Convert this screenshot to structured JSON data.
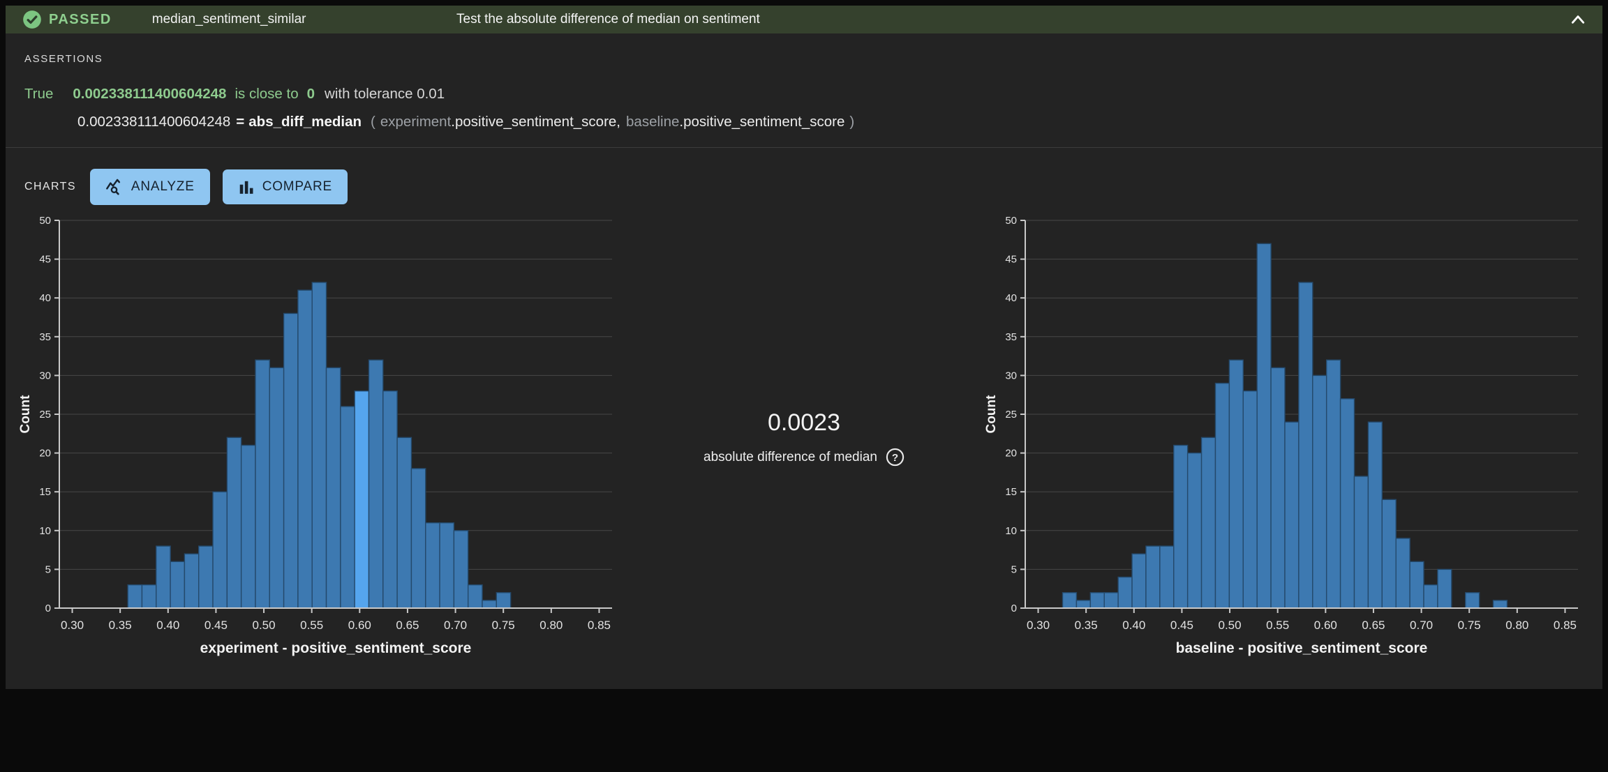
{
  "header": {
    "status": "PASSED",
    "test_name": "median_sentiment_similar",
    "description": "Test the absolute difference of median on sentiment"
  },
  "assertions": {
    "section_label": "ASSERTIONS",
    "result": "True",
    "value": "0.002338111400604248",
    "comparison": "is close to",
    "target": "0",
    "tolerance_text": "with tolerance 0.01",
    "formula": {
      "lhs": "0.002338111400604248",
      "equals": "=",
      "fn": "abs_diff_median",
      "open_paren": "(",
      "arg1_prefix": "experiment",
      "arg1_rest": ".positive_sentiment_score,",
      "arg2_prefix": "baseline",
      "arg2_rest": ".positive_sentiment_score",
      "close_paren": ")"
    }
  },
  "charts_section": {
    "label": "CHARTS",
    "analyze_label": "ANALYZE",
    "compare_label": "COMPARE"
  },
  "metric": {
    "value": "0.0023",
    "label": "absolute difference of median"
  },
  "colors": {
    "page_bg": "#0a0a0a",
    "panel_bg": "#232323",
    "header_bg": "#35412d",
    "status_green": "#8fd08f",
    "check_fill": "#7cc581",
    "check_mark": "#2c3e2c",
    "assert_green": "#8ecb8e",
    "dim_text": "#9da1a6",
    "tol_text": "#d6d6d6",
    "divider": "#3b3b3b",
    "button_bg": "#8fc6f1",
    "button_fg": "#16222e"
  },
  "chart_style": {
    "bar_color": "#3d79b1",
    "highlight_color": "#55a5ee",
    "bar_border": "#24496b",
    "grid_color": "#474747",
    "axis_color": "#c9c9c9",
    "tick_color": "#e2e2e2",
    "label_color": "#f2f2f2",
    "xlim": [
      0.2865,
      0.8635
    ],
    "ylim": [
      0,
      50
    ],
    "xticks": [
      0.3,
      0.35,
      0.4,
      0.45,
      0.5,
      0.55,
      0.6,
      0.65,
      0.7,
      0.75,
      0.8,
      0.85
    ],
    "yticks": [
      0,
      5,
      10,
      15,
      20,
      25,
      30,
      35,
      40,
      45,
      50
    ]
  },
  "chart_data": [
    {
      "type": "bar",
      "name": "experiment-histogram",
      "xlabel": "experiment - positive_sentiment_score",
      "ylabel": "Count",
      "bin_start": 0.358,
      "bin_width": 0.0148,
      "counts": [
        3,
        3,
        8,
        6,
        7,
        8,
        15,
        22,
        21,
        32,
        31,
        38,
        41,
        42,
        31,
        26,
        28,
        32,
        28,
        22,
        18,
        11,
        11,
        10,
        3,
        1,
        2
      ],
      "highlight_index": 16,
      "total_samples": 500
    },
    {
      "type": "bar",
      "name": "baseline-histogram",
      "xlabel": "baseline - positive_sentiment_score",
      "ylabel": "Count",
      "bin_start": 0.3255,
      "bin_width": 0.0145,
      "counts": [
        2,
        1,
        2,
        2,
        4,
        7,
        8,
        8,
        21,
        20,
        22,
        29,
        32,
        28,
        47,
        31,
        24,
        42,
        30,
        32,
        27,
        17,
        24,
        14,
        9,
        6,
        3,
        5,
        0,
        2,
        0,
        1
      ],
      "highlight_index": -1,
      "total_samples": 500
    }
  ]
}
